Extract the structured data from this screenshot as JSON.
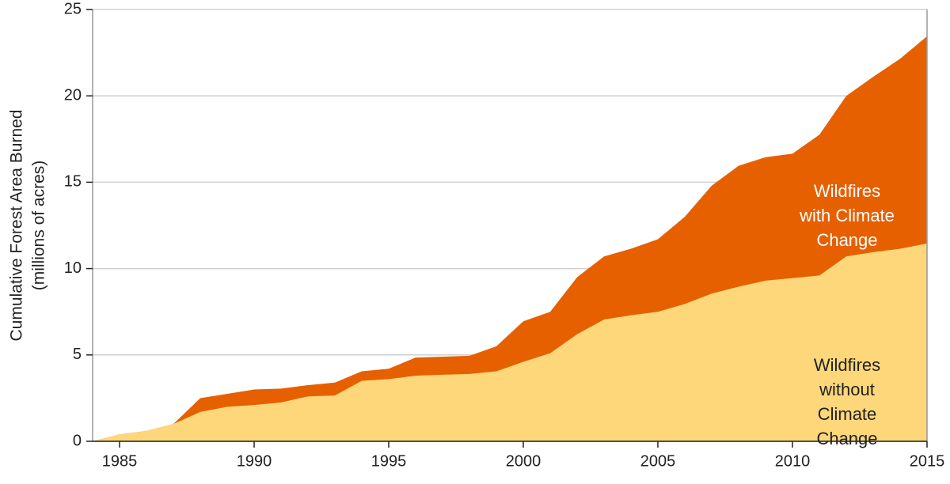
{
  "chart_data": {
    "type": "stacked_area",
    "y_label": [
      "Cumulative Forest Area Burned",
      "(millions of acres)"
    ],
    "x": [
      1984,
      1985,
      1986,
      1987,
      1988,
      1989,
      1990,
      1991,
      1992,
      1993,
      1994,
      1995,
      1996,
      1997,
      1998,
      1999,
      2000,
      2001,
      2002,
      2003,
      2004,
      2005,
      2006,
      2007,
      2008,
      2009,
      2010,
      2011,
      2012,
      2013,
      2014,
      2015
    ],
    "series": [
      {
        "name": "Wildfires\nwithout Climate Change",
        "color": "#fdd77a",
        "label_color": "#222222",
        "values": [
          0,
          0.4,
          0.6,
          1.0,
          1.7,
          2.0,
          2.1,
          2.25,
          2.6,
          2.65,
          3.5,
          3.6,
          3.8,
          3.85,
          3.9,
          4.05,
          4.6,
          5.1,
          6.2,
          7.05,
          7.3,
          7.5,
          7.95,
          8.55,
          8.95,
          9.3,
          9.45,
          9.6,
          10.7,
          10.95,
          11.15,
          11.45
        ]
      },
      {
        "name": "Wildfires\nwith Climate Change",
        "color": "#e66000",
        "label_color": "#ffffff",
        "values": [
          0,
          0,
          0,
          0,
          0.8,
          0.75,
          0.9,
          0.8,
          0.65,
          0.75,
          0.55,
          0.6,
          1.05,
          1.05,
          1.05,
          1.45,
          2.35,
          2.4,
          3.3,
          3.65,
          3.85,
          4.2,
          5.05,
          6.25,
          7.0,
          7.15,
          7.2,
          8.15,
          9.3,
          10.15,
          11.0,
          12.0
        ]
      }
    ],
    "xlim": [
      1984,
      2015
    ],
    "ylim": [
      0,
      25
    ],
    "xticks": [
      1985,
      1990,
      1995,
      2000,
      2005,
      2010,
      2015
    ],
    "yticks": [
      0,
      5,
      10,
      15,
      20,
      25
    ],
    "grid": true
  }
}
